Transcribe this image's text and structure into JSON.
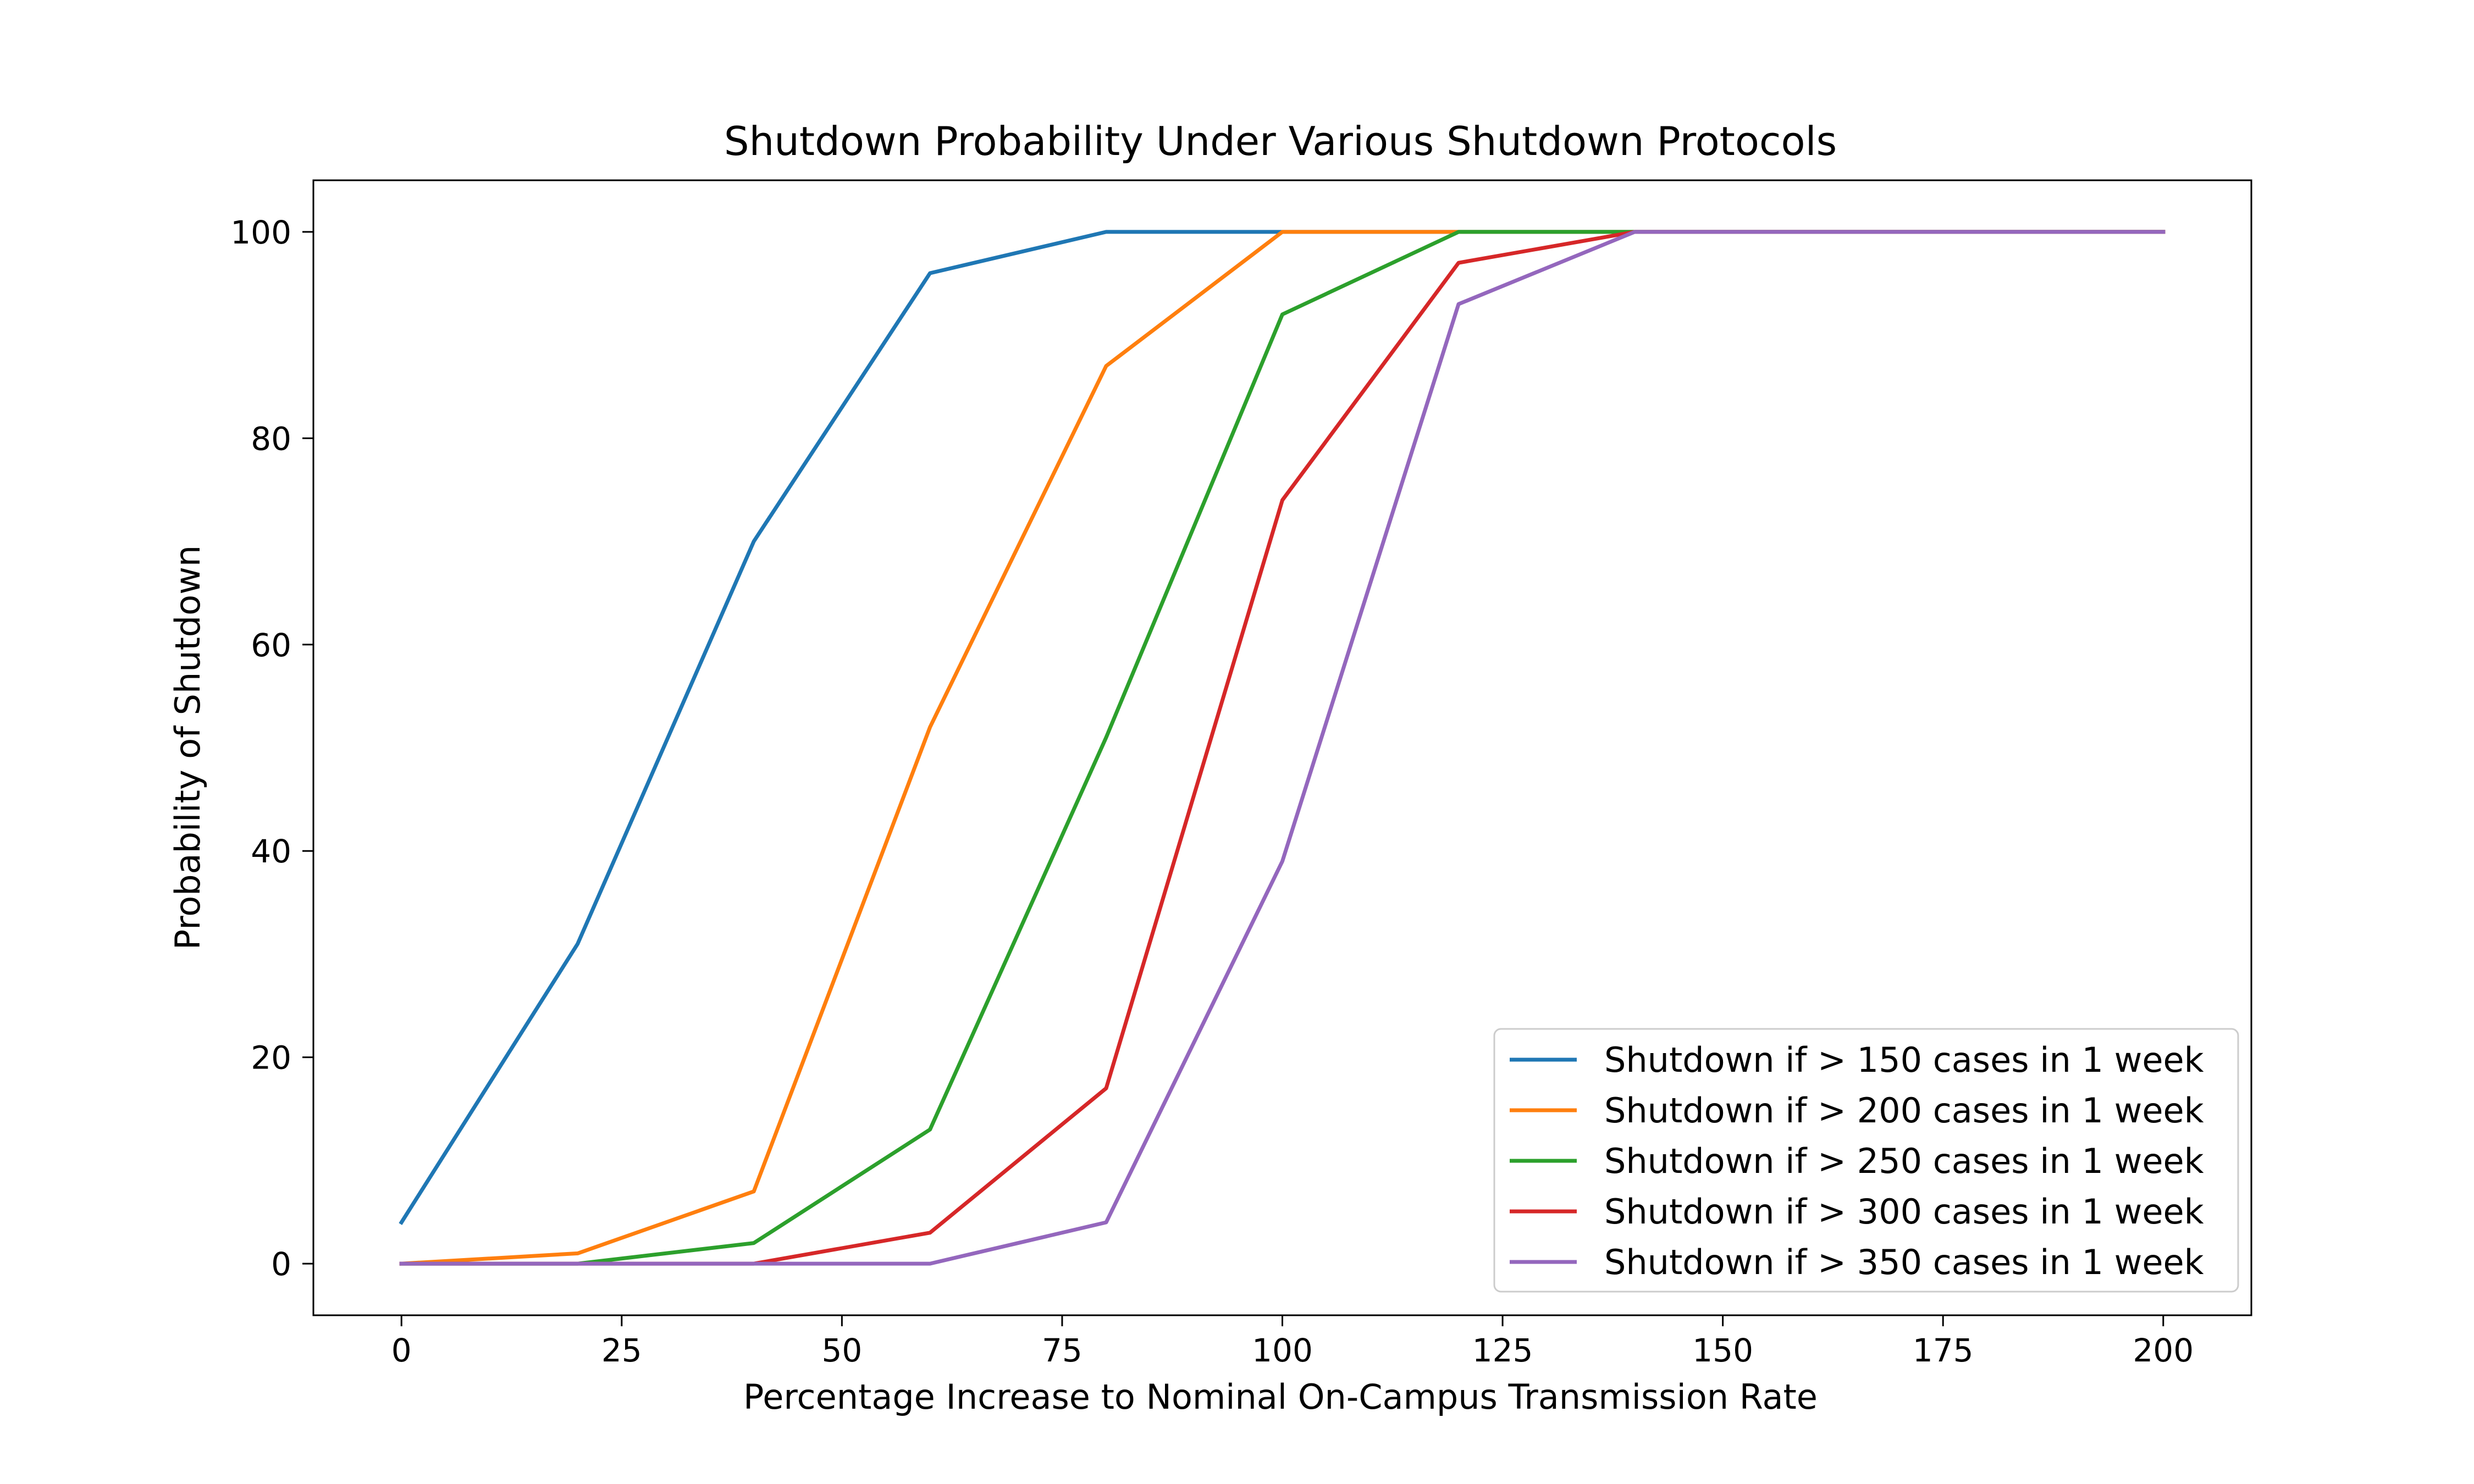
{
  "chart_data": {
    "type": "line",
    "title": "Shutdown Probability Under Various Shutdown Protocols",
    "xlabel": "Percentage Increase to Nominal On-Campus Transmission Rate",
    "ylabel": "Probability of Shutdown",
    "xlim": [
      -10,
      210
    ],
    "ylim": [
      -5,
      105
    ],
    "xticks": [
      0,
      25,
      50,
      75,
      100,
      125,
      150,
      175,
      200
    ],
    "yticks": [
      0,
      20,
      40,
      60,
      80,
      100
    ],
    "grid": false,
    "legend_position": "lower-right",
    "x": [
      0,
      20,
      40,
      60,
      80,
      100,
      120,
      140,
      160,
      180,
      200
    ],
    "series": [
      {
        "name": "Shutdown if > 150 cases in 1 week",
        "color": "#1f77b4",
        "values": [
          4,
          31,
          70,
          96,
          100,
          100,
          100,
          100,
          100,
          100,
          100
        ]
      },
      {
        "name": "Shutdown if > 200 cases in 1 week",
        "color": "#ff7f0e",
        "values": [
          0,
          1,
          7,
          52,
          87,
          100,
          100,
          100,
          100,
          100,
          100
        ]
      },
      {
        "name": "Shutdown if > 250 cases in 1 week",
        "color": "#2ca02c",
        "values": [
          0,
          0,
          2,
          13,
          51,
          92,
          100,
          100,
          100,
          100,
          100
        ]
      },
      {
        "name": "Shutdown if > 300 cases in 1 week",
        "color": "#d62728",
        "values": [
          0,
          0,
          0,
          3,
          17,
          74,
          97,
          100,
          100,
          100,
          100
        ]
      },
      {
        "name": "Shutdown if > 350 cases in 1 week",
        "color": "#9467bd",
        "values": [
          0,
          0,
          0,
          0,
          4,
          39,
          93,
          100,
          100,
          100,
          100
        ]
      }
    ]
  }
}
